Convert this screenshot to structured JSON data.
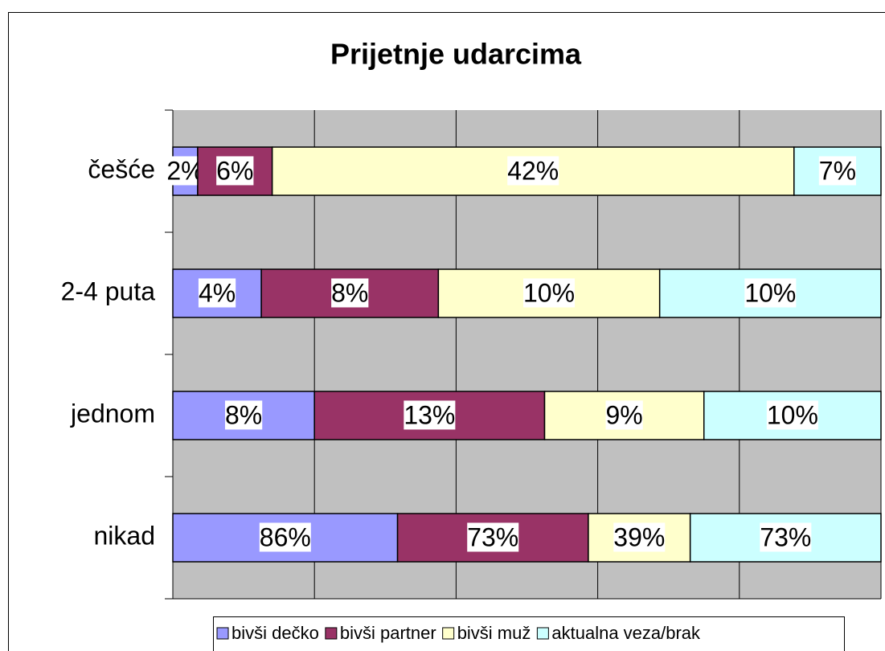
{
  "chart_data": {
    "type": "bar",
    "orientation": "horizontal",
    "stacking": "percent",
    "title": "Prijetnje udarcima",
    "categories": [
      "češće",
      "2-4 puta",
      "jednom",
      "nikad"
    ],
    "series": [
      {
        "name": "bivši dečko",
        "color": "#9999ff",
        "values": [
          2,
          4,
          8,
          86
        ],
        "value_labels": [
          "2%",
          "4%",
          "8%",
          "86%"
        ]
      },
      {
        "name": "bivši partner",
        "color": "#993366",
        "values": [
          6,
          8,
          13,
          73
        ],
        "value_labels": [
          "6%",
          "8%",
          "13%",
          "73%"
        ]
      },
      {
        "name": "bivši muž",
        "color": "#ffffcc",
        "values": [
          42,
          10,
          9,
          39
        ],
        "value_labels": [
          "42%",
          "10%",
          "9%",
          "39%"
        ]
      },
      {
        "name": "aktualna veza/brak",
        "color": "#ccffff",
        "values": [
          7,
          10,
          10,
          73
        ],
        "value_labels": [
          "7%",
          "10%",
          "10%",
          "73%"
        ]
      }
    ],
    "xlim": [
      0,
      100
    ],
    "xticks": [
      0,
      20,
      40,
      60,
      80,
      100
    ],
    "grid": true,
    "legend": "bottom"
  }
}
